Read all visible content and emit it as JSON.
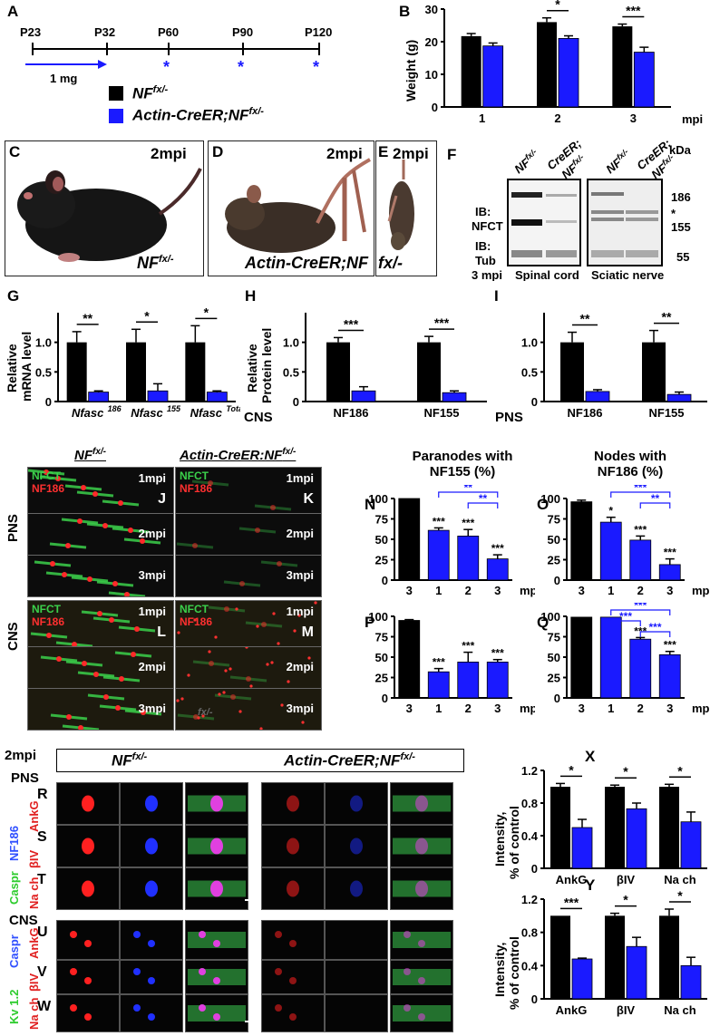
{
  "colors": {
    "control": "#000000",
    "mutant": "#1a1aff",
    "blue_text": "#1a1aff"
  },
  "panelA": {
    "label": "A",
    "timepoints": [
      "P23",
      "P32",
      "P60",
      "P90",
      "P120"
    ],
    "dose": "1 mg",
    "legend_control": "NF",
    "legend_control_sup": "fx/-",
    "legend_mutant": "Actin-CreER;NF",
    "legend_mutant_sup": "fx/-"
  },
  "panelB": {
    "label": "B",
    "ylabel": "Weight (g)",
    "xunit": "mpi",
    "stars": [
      "*",
      "***"
    ]
  },
  "photos": {
    "C": {
      "label": "C",
      "time": "2mpi",
      "caption": "NF",
      "sup": "fx/-"
    },
    "D": {
      "label": "D",
      "time": "2mpi",
      "caption": "Actin-CreER;NF"
    },
    "E": {
      "label": "E",
      "time": "2mpi",
      "caption": "fx/-"
    }
  },
  "panelF": {
    "label": "F",
    "lane1": "NF",
    "lane1_sup": "fx/-",
    "lane2": "CreER;",
    "lane2b": "NF",
    "lane2_sup": "fx/-",
    "ib1a": "IB:",
    "ib1b": "NFCT",
    "ib2a": "IB:",
    "ib2b": "Tub",
    "kda": "kDa",
    "m186": "186",
    "mstar": "*",
    "m155": "155",
    "m55": "55",
    "time": "3 mpi",
    "tissue1": "Spinal cord",
    "tissue2": "Sciatic nerve"
  },
  "panelG": {
    "label": "G",
    "ylabel1": "Relative",
    "ylabel2": "mRNA level",
    "cats": [
      "Nfasc186",
      "Nfasc155",
      "NfascTotal"
    ]
  },
  "panelH": {
    "label": "H",
    "ylabel1": "Relative",
    "ylabel2": "Protein level",
    "tissue": "CNS"
  },
  "panelI": {
    "label": "I",
    "tissue": "PNS"
  },
  "micro": {
    "hdr_control": "NF",
    "hdr_control_sup": "fx/-",
    "hdr_mutant": "Actin-CreER:NF",
    "hdr_mutant_sup": "fx/-",
    "pns": "PNS",
    "cns": "CNS",
    "nfct": "NFCT",
    "nf186": "NF186",
    "t1": "1mpi",
    "t2": "2mpi",
    "t3": "3mpi",
    "J": "J",
    "K": "K",
    "L": "L",
    "M": "M",
    "fx": "fx/-"
  },
  "panelN": {
    "label": "N",
    "title1": "Paranodes with",
    "title2": "NF155 (%)",
    "xunit": "mpi"
  },
  "panelO": {
    "label": "O",
    "title1": "Nodes with",
    "title2": "NF186 (%)",
    "xunit": "mpi"
  },
  "panelP": {
    "label": "P",
    "xunit": "mpi"
  },
  "panelQ": {
    "label": "Q",
    "xunit": "mpi"
  },
  "bottom": {
    "time": "2mpi",
    "pns": "PNS",
    "cns": "CNS",
    "hdr_control": "NF",
    "hdr_control_sup": "fx/-",
    "hdr_mutant": "Actin-CreER;NF",
    "hdr_mutant_sup": "fx/-",
    "caspr": "Caspr",
    "nf186": "NF186",
    "ankg": "AnkG",
    "biv": "βIV",
    "nach": "Na ch",
    "kv": "Kv 1.2",
    "R": "R",
    "S": "S",
    "T": "T",
    "U": "U",
    "V": "V",
    "W": "W"
  },
  "panelX": {
    "label": "X",
    "ylabel1": "Intensity,",
    "ylabel2": "% of control"
  },
  "panelY": {
    "label": "Y",
    "ylabel1": "Intensity,",
    "ylabel2": "% of control"
  },
  "chart_data": [
    {
      "panel": "B",
      "type": "bar",
      "categories": [
        "1",
        "2",
        "3"
      ],
      "xlabel": "mpi",
      "ylabel": "Weight (g)",
      "ylim": [
        0,
        30
      ],
      "yticks": [
        0,
        10,
        20,
        30
      ],
      "series": [
        {
          "values": [
            21.7,
            26.0,
            24.7
          ],
          "err": [
            0.8,
            1.3,
            0.7
          ]
        },
        {
          "values": [
            18.7,
            21.0,
            16.8
          ],
          "err": [
            0.9,
            0.8,
            1.5
          ]
        }
      ],
      "sig": [
        "",
        "*",
        "***"
      ]
    },
    {
      "panel": "G",
      "type": "bar",
      "categories": [
        "Nfasc186",
        "Nfasc155",
        "NfascTotal"
      ],
      "ylabel": "Relative mRNA level",
      "ylim": [
        0,
        1.5
      ],
      "yticks": [
        0,
        0.5,
        1.0
      ],
      "series": [
        {
          "values": [
            1.0,
            1.0,
            1.0
          ],
          "err": [
            0.18,
            0.22,
            0.28
          ]
        },
        {
          "values": [
            0.16,
            0.18,
            0.16
          ],
          "err": [
            0.02,
            0.12,
            0.02
          ]
        }
      ],
      "sig": [
        "**",
        "*",
        "*"
      ]
    },
    {
      "panel": "H",
      "type": "bar",
      "categories": [
        "NF186",
        "NF155"
      ],
      "ylabel": "Relative Protein level",
      "ylim": [
        0,
        1.5
      ],
      "yticks": [
        0,
        0.5,
        1.0
      ],
      "series": [
        {
          "values": [
            1.0,
            1.0
          ],
          "err": [
            0.08,
            0.1
          ]
        },
        {
          "values": [
            0.18,
            0.15
          ],
          "err": [
            0.07,
            0.03
          ]
        }
      ],
      "sig": [
        "***",
        "***"
      ]
    },
    {
      "panel": "I",
      "type": "bar",
      "categories": [
        "NF186",
        "NF155"
      ],
      "ylim": [
        0,
        1.5
      ],
      "yticks": [
        0,
        0.5,
        1.0
      ],
      "series": [
        {
          "values": [
            1.0,
            1.0
          ],
          "err": [
            0.17,
            0.2
          ]
        },
        {
          "values": [
            0.17,
            0.12
          ],
          "err": [
            0.03,
            0.04
          ]
        }
      ],
      "sig": [
        "**",
        "**"
      ]
    },
    {
      "panel": "N",
      "type": "bar",
      "categories": [
        "3",
        "1",
        "2",
        "3"
      ],
      "xlabel": "mpi",
      "ylim": [
        0,
        100
      ],
      "yticks": [
        0,
        25,
        50,
        75,
        100
      ],
      "values": [
        100,
        61,
        54,
        26
      ],
      "err": [
        0,
        3,
        8,
        5
      ],
      "colors": [
        "control",
        "mutant",
        "mutant",
        "mutant"
      ],
      "sig": [
        "",
        "***",
        "***",
        "***"
      ],
      "brackets": [
        {
          "from": 1,
          "to": 3,
          "label": "**"
        },
        {
          "from": 2,
          "to": 3,
          "label": "**"
        }
      ]
    },
    {
      "panel": "O",
      "type": "bar",
      "categories": [
        "3",
        "1",
        "2",
        "3"
      ],
      "xlabel": "mpi",
      "ylim": [
        0,
        100
      ],
      "yticks": [
        0,
        25,
        50,
        75,
        100
      ],
      "values": [
        96,
        71,
        49,
        19
      ],
      "err": [
        2,
        6,
        5,
        7
      ],
      "colors": [
        "control",
        "mutant",
        "mutant",
        "mutant"
      ],
      "sig": [
        "",
        "*",
        "***",
        "***"
      ],
      "brackets": [
        {
          "from": 1,
          "to": 3,
          "label": "***"
        },
        {
          "from": 2,
          "to": 3,
          "label": "**"
        }
      ]
    },
    {
      "panel": "P",
      "type": "bar",
      "categories": [
        "3",
        "1",
        "2",
        "3"
      ],
      "xlabel": "mpi",
      "ylim": [
        0,
        100
      ],
      "yticks": [
        0,
        25,
        50,
        75,
        100
      ],
      "values": [
        95,
        32,
        44,
        44
      ],
      "err": [
        1,
        4,
        12,
        3
      ],
      "colors": [
        "control",
        "mutant",
        "mutant",
        "mutant"
      ],
      "sig": [
        "",
        "***",
        "***",
        "***"
      ]
    },
    {
      "panel": "Q",
      "type": "bar",
      "categories": [
        "3",
        "1",
        "2",
        "3"
      ],
      "xlabel": "mpi",
      "ylim": [
        0,
        100
      ],
      "yticks": [
        0,
        25,
        50,
        75,
        100
      ],
      "values": [
        99,
        99,
        72,
        53
      ],
      "err": [
        0,
        0,
        2,
        4
      ],
      "colors": [
        "control",
        "mutant",
        "mutant",
        "mutant"
      ],
      "sig": [
        "",
        "",
        "***",
        "***"
      ],
      "brackets": [
        {
          "from": 1,
          "to": 3,
          "label": "***"
        },
        {
          "from": 1,
          "to": 2,
          "label": "***"
        },
        {
          "from": 2,
          "to": 3,
          "label": "***"
        }
      ]
    },
    {
      "panel": "X",
      "type": "bar",
      "categories": [
        "AnkG",
        "βIV",
        "Na ch"
      ],
      "ylabel": "Intensity, % of control",
      "ylim": [
        0,
        1.2
      ],
      "yticks": [
        0,
        0.4,
        0.8,
        1.2
      ],
      "series": [
        {
          "values": [
            1.0,
            1.0,
            1.0
          ],
          "err": [
            0.04,
            0.02,
            0.03
          ]
        },
        {
          "values": [
            0.5,
            0.73,
            0.57
          ],
          "err": [
            0.1,
            0.07,
            0.12
          ]
        }
      ],
      "sig": [
        "*",
        "*",
        "*"
      ]
    },
    {
      "panel": "Y",
      "type": "bar",
      "categories": [
        "AnkG",
        "βIV",
        "Na ch"
      ],
      "ylabel": "Intensity, % of control",
      "ylim": [
        0,
        1.2
      ],
      "yticks": [
        0,
        0.4,
        0.8,
        1.2
      ],
      "series": [
        {
          "values": [
            1.0,
            1.0,
            1.0
          ],
          "err": [
            0.0,
            0.03,
            0.08
          ]
        },
        {
          "values": [
            0.48,
            0.63,
            0.4
          ],
          "err": [
            0.01,
            0.11,
            0.1
          ]
        }
      ],
      "sig": [
        "***",
        "*",
        "*"
      ]
    }
  ]
}
